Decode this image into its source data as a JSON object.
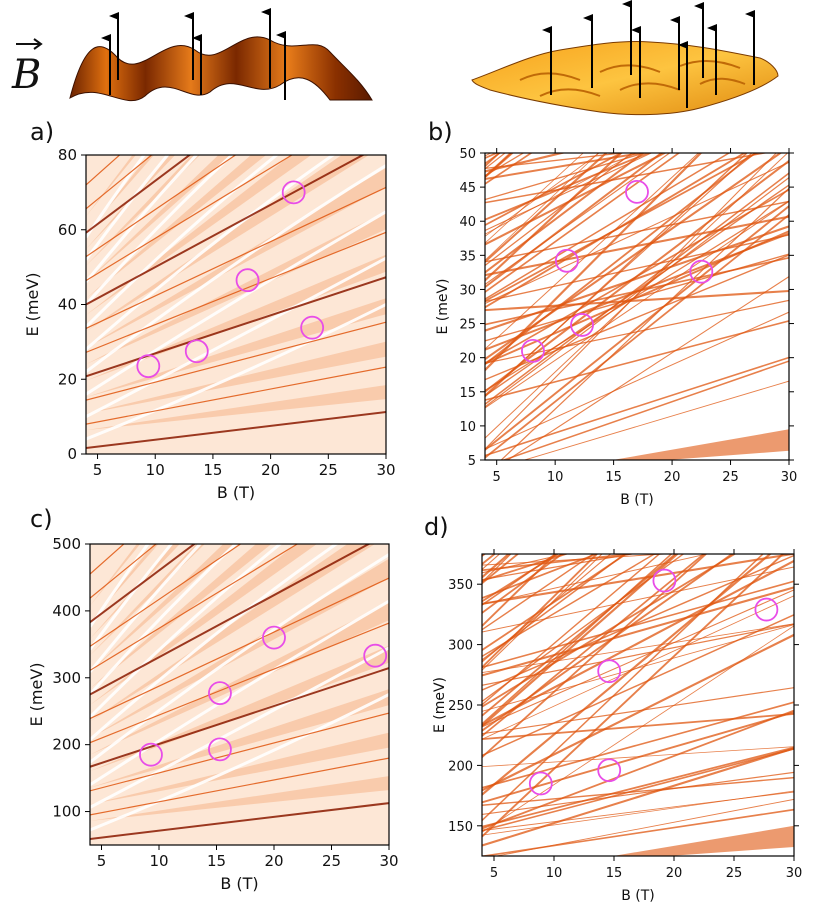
{
  "figure": {
    "field_symbol": "B",
    "colors": {
      "band_dark": "#8b1a00",
      "band_mid": "#e0560f",
      "band_light": "#f7c9a3",
      "marker": "#e84de8"
    }
  },
  "chart_data": [
    {
      "type": "heatmap",
      "panel": "a)",
      "xlabel": "B (T)",
      "ylabel": "E (meV)",
      "xlim": [
        4,
        30
      ],
      "ylim": [
        0,
        80
      ],
      "xticks": [
        5,
        10,
        15,
        20,
        25,
        30
      ],
      "yticks": [
        0,
        20,
        40,
        60,
        80
      ],
      "circles": [
        {
          "x": 9.4,
          "y": 23.5
        },
        {
          "x": 13.6,
          "y": 27.5
        },
        {
          "x": 18.0,
          "y": 46.5
        },
        {
          "x": 22.0,
          "y": 70.0
        },
        {
          "x": 23.6,
          "y": 33.8
        }
      ]
    },
    {
      "type": "heatmap",
      "panel": "b)",
      "xlabel": "B (T)",
      "ylabel": "E (meV)",
      "xlim": [
        4,
        30
      ],
      "ylim": [
        5,
        50
      ],
      "xticks": [
        5,
        10,
        15,
        20,
        25,
        30
      ],
      "yticks": [
        5,
        10,
        15,
        20,
        25,
        30,
        35,
        40,
        45,
        50
      ],
      "circles": [
        {
          "x": 8.1,
          "y": 21.0
        },
        {
          "x": 11.0,
          "y": 34.2
        },
        {
          "x": 12.3,
          "y": 24.8
        },
        {
          "x": 17.0,
          "y": 44.3
        },
        {
          "x": 22.5,
          "y": 32.6
        }
      ]
    },
    {
      "type": "heatmap",
      "panel": "c)",
      "xlabel": "B (T)",
      "ylabel": "E (meV)",
      "xlim": [
        4,
        30
      ],
      "ylim": [
        50,
        500
      ],
      "xticks": [
        5,
        10,
        15,
        20,
        25,
        30
      ],
      "yticks": [
        100,
        200,
        300,
        400,
        500
      ],
      "circles": [
        {
          "x": 9.3,
          "y": 185
        },
        {
          "x": 15.3,
          "y": 193
        },
        {
          "x": 15.3,
          "y": 277
        },
        {
          "x": 20.0,
          "y": 360
        },
        {
          "x": 28.8,
          "y": 333
        }
      ]
    },
    {
      "type": "heatmap",
      "panel": "d)",
      "xlabel": "B (T)",
      "ylabel": "E (meV)",
      "xlim": [
        4,
        30
      ],
      "ylim": [
        125,
        375
      ],
      "xticks": [
        5,
        10,
        15,
        20,
        25,
        30
      ],
      "yticks": [
        150,
        200,
        250,
        300,
        350
      ],
      "circles": [
        {
          "x": 8.9,
          "y": 185
        },
        {
          "x": 14.6,
          "y": 196
        },
        {
          "x": 14.6,
          "y": 278
        },
        {
          "x": 19.2,
          "y": 353
        },
        {
          "x": 27.7,
          "y": 329
        }
      ]
    }
  ]
}
